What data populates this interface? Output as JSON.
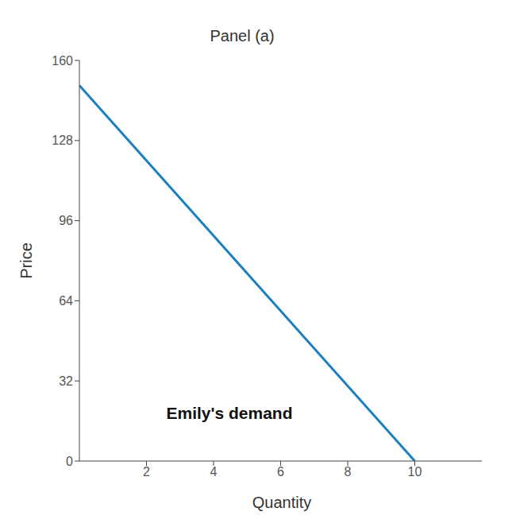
{
  "chart_data": {
    "type": "line",
    "title": "Panel (a)",
    "x_label": "Quantity",
    "y_label": "Price",
    "annotation": "Emily's demand",
    "x": [
      0,
      10
    ],
    "series": [
      {
        "name": "Emily's demand",
        "color": "#1a80c0",
        "values": [
          150,
          0
        ]
      }
    ],
    "xlim": [
      0,
      12
    ],
    "xticks": [
      2,
      4,
      6,
      8,
      10
    ],
    "ylim": [
      0,
      160
    ],
    "yticks": [
      0,
      32,
      64,
      96,
      128,
      160
    ],
    "grid": false
  }
}
